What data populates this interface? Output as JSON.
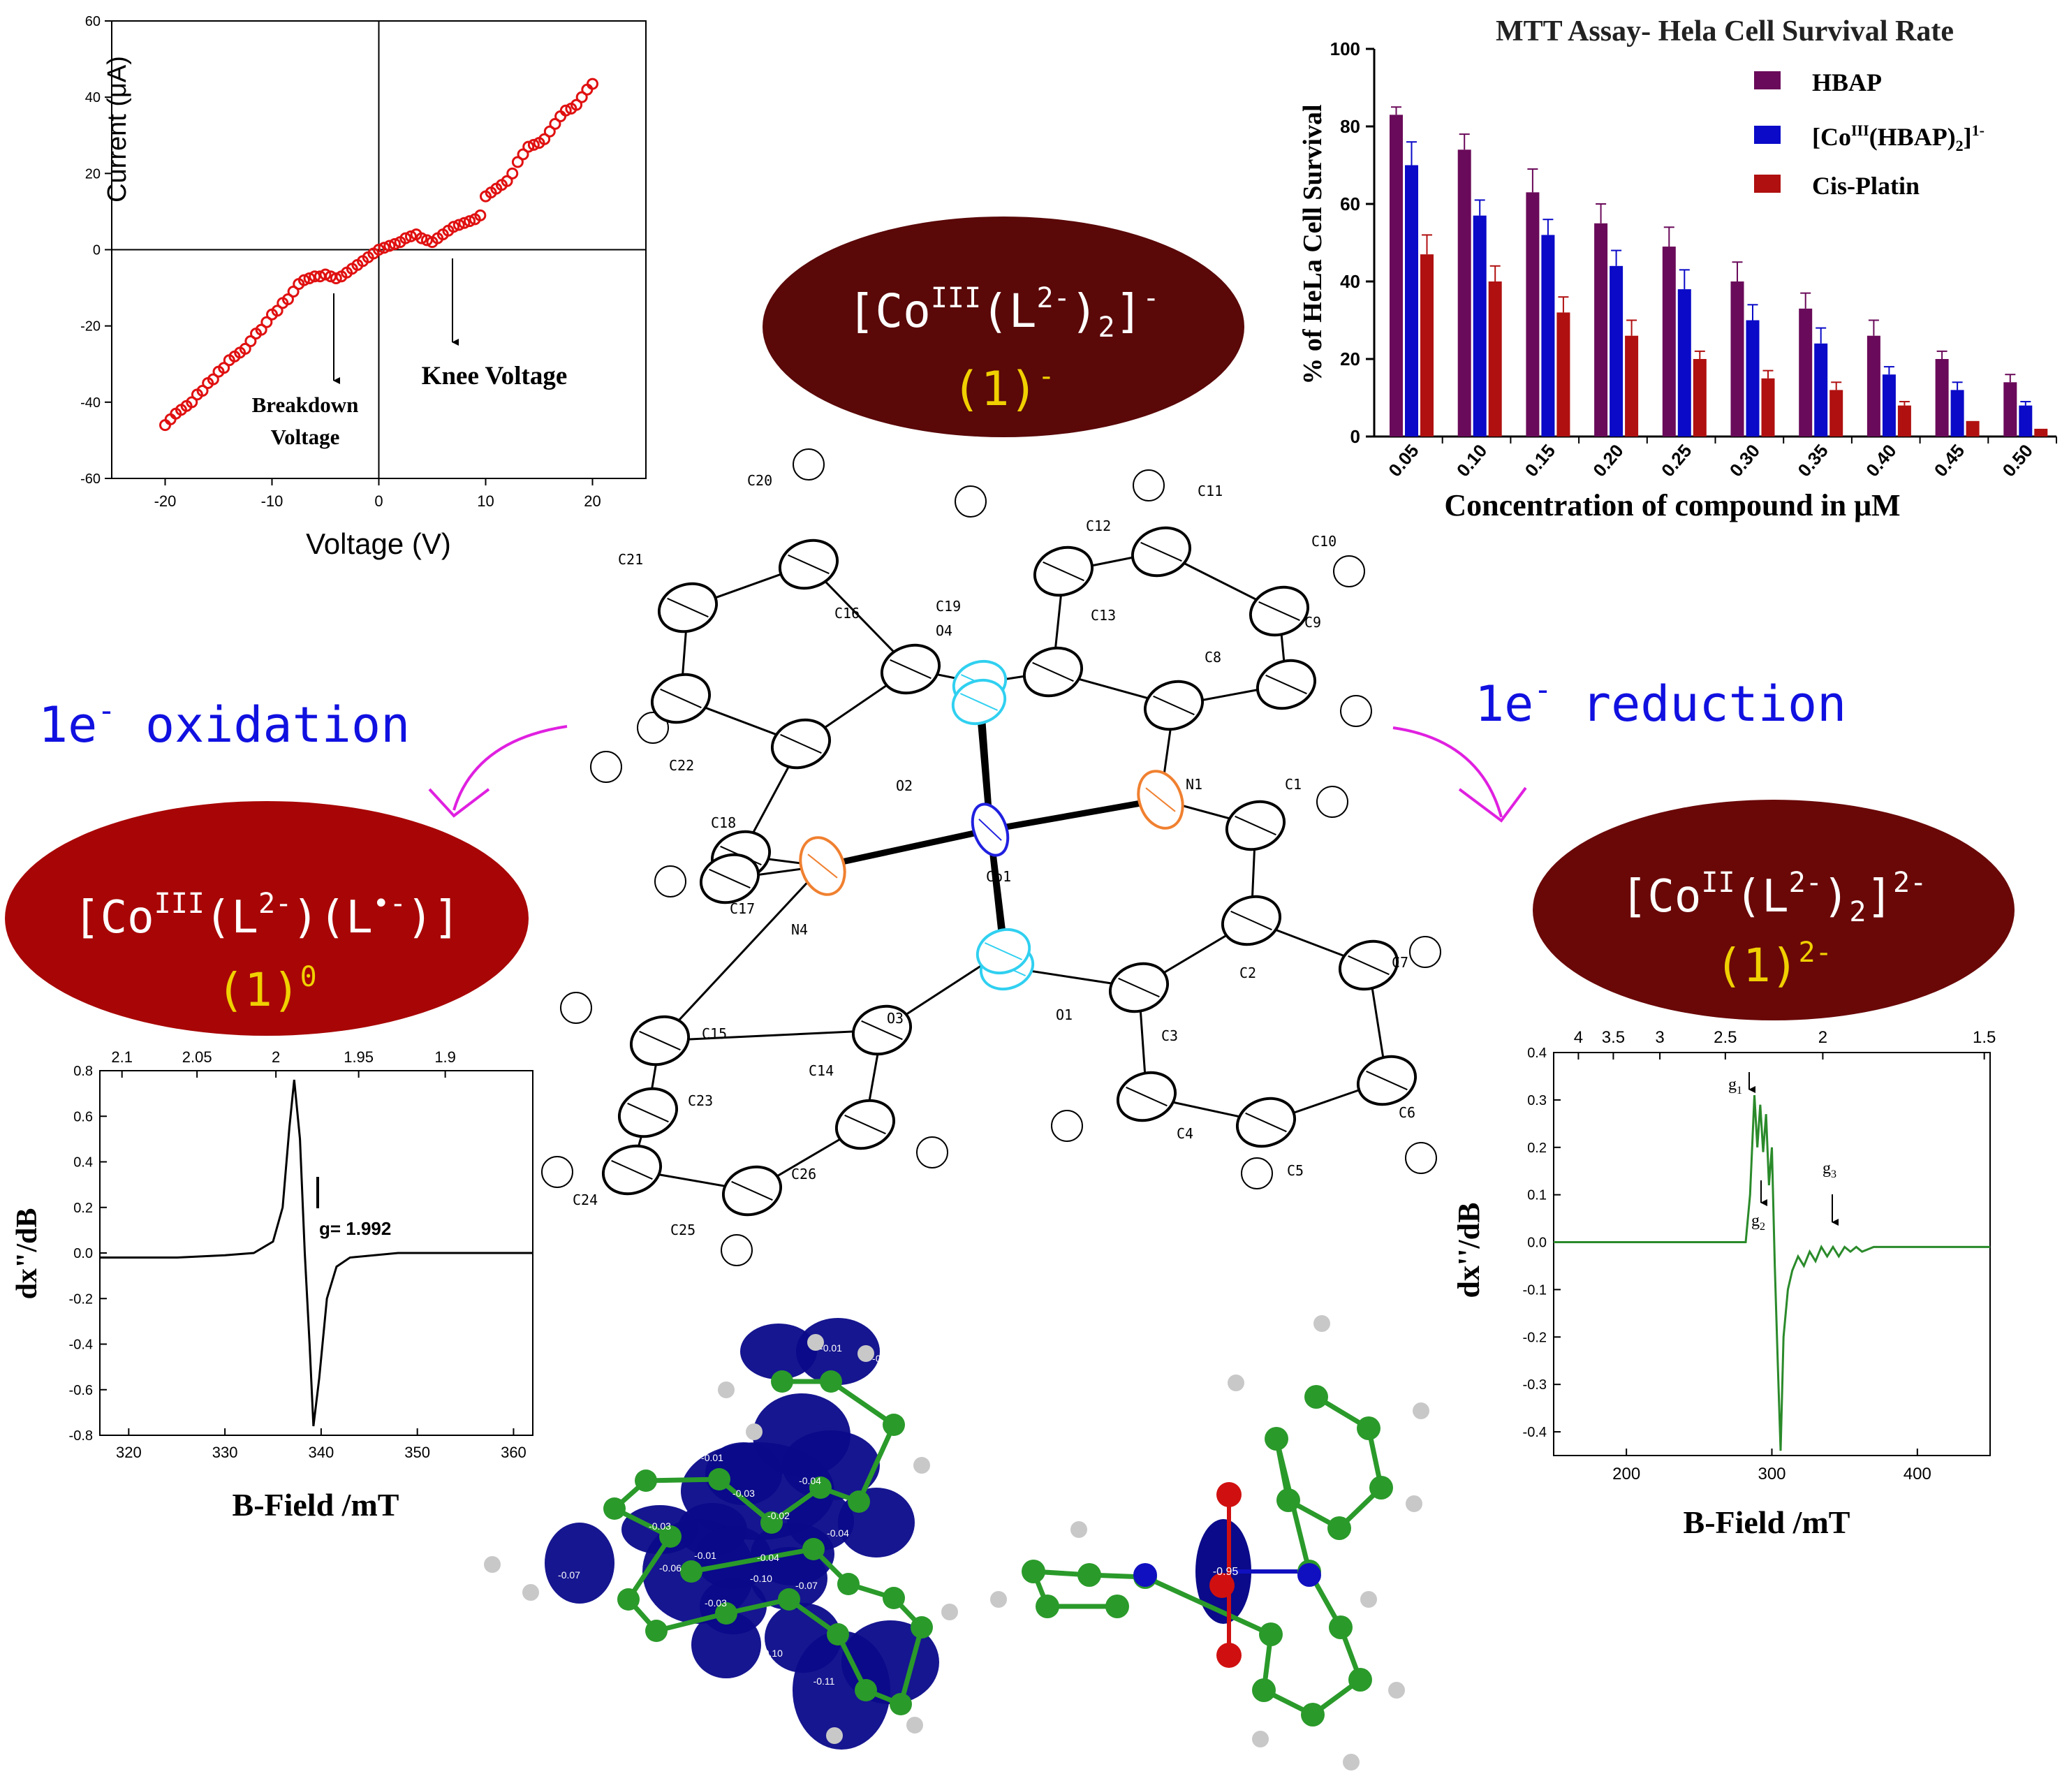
{
  "iv_chart": {
    "type": "scatter",
    "xlabel": "Voltage (V)",
    "ylabel": "Current (μA)",
    "xlim": [
      -25,
      25
    ],
    "ylim": [
      -60,
      60
    ],
    "xticks": [
      -20,
      -10,
      0,
      10,
      20
    ],
    "yticks": [
      -60,
      -40,
      -20,
      0,
      20,
      40,
      60
    ],
    "annotations": {
      "breakdown_1": "Breakdown",
      "breakdown_2": "Voltage",
      "knee": "Knee Voltage"
    },
    "marker_color": "#e01010",
    "points": [
      [
        -20,
        -46
      ],
      [
        -19.5,
        -44.5
      ],
      [
        -19,
        -43
      ],
      [
        -18.5,
        -42
      ],
      [
        -18,
        -41
      ],
      [
        -17.5,
        -40
      ],
      [
        -17,
        -38
      ],
      [
        -16.5,
        -37
      ],
      [
        -16,
        -35
      ],
      [
        -15.5,
        -34
      ],
      [
        -15,
        -32
      ],
      [
        -14.5,
        -31
      ],
      [
        -14,
        -29
      ],
      [
        -13.5,
        -28
      ],
      [
        -13,
        -27
      ],
      [
        -12.5,
        -26
      ],
      [
        -12,
        -24
      ],
      [
        -11.5,
        -22
      ],
      [
        -11,
        -21
      ],
      [
        -10.5,
        -19
      ],
      [
        -10,
        -17
      ],
      [
        -9.5,
        -16
      ],
      [
        -9,
        -14
      ],
      [
        -8.5,
        -13
      ],
      [
        -8,
        -11
      ],
      [
        -7.5,
        -9
      ],
      [
        -7,
        -8
      ],
      [
        -6.5,
        -7.5
      ],
      [
        -6,
        -7
      ],
      [
        -5.5,
        -7
      ],
      [
        -5,
        -6.5
      ],
      [
        -4.5,
        -7
      ],
      [
        -4,
        -7.5
      ],
      [
        -3.5,
        -7
      ],
      [
        -3,
        -6
      ],
      [
        -2.5,
        -5
      ],
      [
        -2,
        -4
      ],
      [
        -1.5,
        -3
      ],
      [
        -1,
        -2
      ],
      [
        -0.5,
        -1
      ],
      [
        0,
        0
      ],
      [
        0.5,
        0.5
      ],
      [
        1,
        1
      ],
      [
        1.5,
        1.5
      ],
      [
        2,
        2
      ],
      [
        2.5,
        3
      ],
      [
        3,
        3.5
      ],
      [
        3.5,
        4
      ],
      [
        4,
        3
      ],
      [
        4.5,
        2.5
      ],
      [
        5,
        2
      ],
      [
        5.5,
        3
      ],
      [
        6,
        4
      ],
      [
        6.5,
        5
      ],
      [
        7,
        6
      ],
      [
        7.5,
        6.5
      ],
      [
        8,
        7
      ],
      [
        8.5,
        7.5
      ],
      [
        9,
        8
      ],
      [
        9.5,
        9
      ],
      [
        10,
        14
      ],
      [
        10.5,
        15
      ],
      [
        11,
        16
      ],
      [
        11.5,
        17
      ],
      [
        12,
        18
      ],
      [
        12.5,
        20
      ],
      [
        13,
        23
      ],
      [
        13.5,
        25
      ],
      [
        14,
        27
      ],
      [
        14.5,
        27.5
      ],
      [
        15,
        28
      ],
      [
        15.5,
        29
      ],
      [
        16,
        31
      ],
      [
        16.5,
        33
      ],
      [
        17,
        35
      ],
      [
        17.5,
        36.5
      ],
      [
        18,
        37
      ],
      [
        18.5,
        38
      ],
      [
        19,
        40
      ],
      [
        19.5,
        42
      ],
      [
        20,
        43.5
      ]
    ]
  },
  "mtt_chart": {
    "type": "bar",
    "title": "MTT Assay- Hela Cell Survival Rate",
    "xlabel": "Concentration of compound in μM",
    "ylabel": "% of HeLa Cell Survival",
    "ylim": [
      0,
      100
    ],
    "yticks": [
      0,
      20,
      40,
      60,
      80,
      100
    ],
    "categories": [
      "0.05",
      "0.10",
      "0.15",
      "0.20",
      "0.25",
      "0.30",
      "0.35",
      "0.40",
      "0.45",
      "0.50"
    ],
    "legend_position": "top-right",
    "series": [
      {
        "name": "HBAP",
        "color": "#6a0a5a",
        "values": [
          83,
          74,
          63,
          55,
          49,
          40,
          33,
          26,
          20,
          14
        ],
        "errors": [
          2,
          4,
          6,
          5,
          5,
          5,
          4,
          4,
          2,
          2
        ]
      },
      {
        "name": "[Co",
        "name_sup": "III",
        "name_mid": "(HBAP)",
        "name_sub": "2",
        "name_end": "]",
        "name_end_sup": "1-",
        "color": "#0a0ac8",
        "values": [
          70,
          57,
          52,
          44,
          38,
          30,
          24,
          16,
          12,
          8
        ],
        "errors": [
          6,
          4,
          4,
          4,
          5,
          4,
          4,
          2,
          2,
          1
        ]
      },
      {
        "name": "Cis-Platin",
        "color": "#b01010",
        "values": [
          47,
          40,
          32,
          26,
          20,
          15,
          12,
          8,
          4,
          2
        ],
        "errors": [
          5,
          4,
          4,
          4,
          2,
          2,
          2,
          1,
          0,
          0
        ]
      }
    ]
  },
  "epr_left": {
    "type": "line",
    "xlabel": "B-Field /mT",
    "ylabel": "dx\"/dB",
    "xlim": [
      317,
      362
    ],
    "ylim": [
      -0.8,
      0.8
    ],
    "xticks": [
      320,
      330,
      340,
      350,
      360
    ],
    "yticks": [
      -0.8,
      -0.6,
      -0.4,
      -0.2,
      0.0,
      0.2,
      0.4,
      0.6,
      0.8
    ],
    "top_ticks": [
      "2.1",
      "2.05",
      "2",
      "1.95",
      "1.9"
    ],
    "top_tick_fields": [
      319.3,
      327.1,
      335.3,
      343.9,
      352.9
    ],
    "annotation": "g= 1.992",
    "line_color": "#000000",
    "trace": [
      [
        317,
        -0.02
      ],
      [
        320,
        -0.02
      ],
      [
        325,
        -0.02
      ],
      [
        330,
        -0.01
      ],
      [
        333,
        0.0
      ],
      [
        335,
        0.05
      ],
      [
        336,
        0.2
      ],
      [
        336.7,
        0.55
      ],
      [
        337.2,
        0.76
      ],
      [
        337.8,
        0.5
      ],
      [
        338.3,
        0.0
      ],
      [
        338.8,
        -0.4
      ],
      [
        339.2,
        -0.76
      ],
      [
        339.8,
        -0.55
      ],
      [
        340.6,
        -0.2
      ],
      [
        341.6,
        -0.06
      ],
      [
        343,
        -0.02
      ],
      [
        348,
        0.0
      ],
      [
        355,
        0.0
      ],
      [
        362,
        0.0
      ]
    ]
  },
  "epr_right": {
    "type": "line",
    "xlabel": "B-Field /mT",
    "ylabel": "dx''/dB",
    "xlim": [
      150,
      450
    ],
    "ylim": [
      -0.45,
      0.4
    ],
    "xticks": [
      200,
      300,
      400
    ],
    "yticks": [
      -0.4,
      -0.3,
      -0.2,
      -0.1,
      0.0,
      0.1,
      0.2,
      0.3,
      0.4
    ],
    "top_ticks": [
      "4",
      "3.5",
      "3",
      "2.5",
      "2",
      "1.5"
    ],
    "top_tick_fields": [
      167,
      191,
      223,
      268,
      335,
      446
    ],
    "annotations": {
      "g1": "g",
      "g1_sub": "1",
      "g2": "g",
      "g2_sub": "2",
      "g3": "g",
      "g3_sub": "3"
    },
    "line_color": "#2a8a2a",
    "trace": [
      [
        150,
        0.0
      ],
      [
        200,
        0.0
      ],
      [
        260,
        0.0
      ],
      [
        282,
        0.0
      ],
      [
        285,
        0.1
      ],
      [
        288,
        0.31
      ],
      [
        290,
        0.2
      ],
      [
        292,
        0.29
      ],
      [
        294,
        0.19
      ],
      [
        296,
        0.27
      ],
      [
        298,
        0.12
      ],
      [
        300,
        0.2
      ],
      [
        302,
        -0.05
      ],
      [
        304,
        -0.25
      ],
      [
        306,
        -0.44
      ],
      [
        308,
        -0.2
      ],
      [
        311,
        -0.1
      ],
      [
        314,
        -0.06
      ],
      [
        318,
        -0.03
      ],
      [
        322,
        -0.05
      ],
      [
        326,
        -0.02
      ],
      [
        330,
        -0.04
      ],
      [
        334,
        -0.01
      ],
      [
        338,
        -0.03
      ],
      [
        342,
        -0.01
      ],
      [
        346,
        -0.03
      ],
      [
        350,
        -0.01
      ],
      [
        354,
        -0.02
      ],
      [
        358,
        -0.01
      ],
      [
        362,
        -0.02
      ],
      [
        370,
        -0.01
      ],
      [
        400,
        -0.01
      ],
      [
        450,
        -0.01
      ]
    ]
  },
  "species": {
    "top": {
      "formula_open": "[Co",
      "ox": "III",
      "ligand": "(L",
      "lig_sup": "2-",
      "close": ")",
      "sub": "2",
      "end": "]",
      "charge": "-",
      "label": "(1)",
      "label_sup": "-",
      "fill": "#5a0808"
    },
    "left": {
      "formula_open": "[Co",
      "ox": "III",
      "ligand1": "(L",
      "lig1_sup": "2-",
      "mid": ")(L",
      "lig2_sup": "•-",
      "end": ")]",
      "label": "(1)",
      "label_sup": "0",
      "fill": "#a80606"
    },
    "right": {
      "formula_open": "[Co",
      "ox": "II",
      "ligand": "(L",
      "lig_sup": "2-",
      "close": ")",
      "sub": "2",
      "end": "]",
      "charge": "2-",
      "label": "(1)",
      "label_sup": "2-",
      "fill": "#6a0808"
    },
    "label_color": "#f0d000"
  },
  "reactions": {
    "oxidation": {
      "prefix": "1e",
      "sup": "-",
      "word": " oxidation",
      "color": "#1010e0"
    },
    "reduction": {
      "prefix": "1e",
      "sup": "-",
      "word": " reduction",
      "color": "#1010e0"
    },
    "arrow_color": "#e020e0"
  },
  "crystal_structure": {
    "atom_labels": [
      "C20",
      "C21",
      "C16",
      "C19",
      "O4",
      "C12",
      "C11",
      "C10",
      "C13",
      "C9",
      "C8",
      "C22",
      "C18",
      "O2",
      "N1",
      "C1",
      "Co1",
      "C17",
      "N4",
      "C7",
      "C2",
      "O1",
      "C3",
      "C15",
      "C14",
      "O3",
      "C23",
      "C26",
      "C4",
      "C6",
      "C5",
      "C24",
      "C25"
    ],
    "N_color": "#f08030",
    "O_color": "#30d0f0",
    "Co_color": "#2020e0"
  },
  "spin_density": {
    "values": [
      "-0.01",
      "-0.02",
      "-0.02",
      "-0.01",
      "-0.04",
      "-0.03",
      "-0.02",
      "-0.04",
      "-0.03",
      "-0.04",
      "-0.07",
      "-0.03",
      "-0.06",
      "-0.01",
      "-0.10",
      "-0.03",
      "-0.07",
      "-0.10",
      "-0.11",
      "-0.07"
    ],
    "right_value": "-0.95",
    "lobe_color": "#0a0a8a",
    "C_color": "#2a9a2a",
    "O_color": "#d01010",
    "N_color": "#1010c0",
    "H_color": "#c8c8c8"
  }
}
